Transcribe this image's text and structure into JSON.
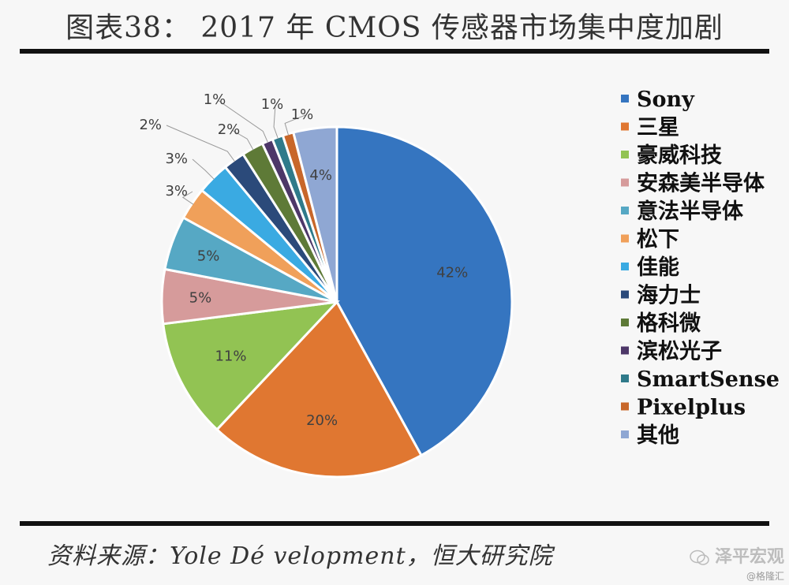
{
  "title": "图表38： 2017 年 CMOS 传感器市场集中度加剧",
  "source": "资料来源：Yole Dé velopment，恒大研究院",
  "watermark": {
    "name": "泽平宏观",
    "sub": "@格隆汇"
  },
  "chart_data": {
    "type": "pie",
    "title": "",
    "categories": [
      "Sony",
      "三星",
      "豪威科技",
      "安森美半导体",
      "意法半导体",
      "松下",
      "佳能",
      "海力士",
      "格科微",
      "滨松光子",
      "SmartSense",
      "Pixelplus",
      "其他"
    ],
    "values": [
      42,
      20,
      11,
      5,
      5,
      3,
      3,
      2,
      2,
      1,
      1,
      1,
      4
    ],
    "labels": [
      "42%",
      "20%",
      "11%",
      "5%",
      "5%",
      "3%",
      "3%",
      "2%",
      "2%",
      "1%",
      "1%",
      "1%",
      "4%"
    ],
    "colors": [
      "#3575c0",
      "#e07731",
      "#92c353",
      "#d69b9b",
      "#56a8c4",
      "#f0a05a",
      "#3aaae2",
      "#2b4a7a",
      "#5e7a37",
      "#4d3768",
      "#2f7a8a",
      "#c8672a",
      "#8fa7d3"
    ],
    "start_angle_deg": 0,
    "direction": "clockwise",
    "legend": "right"
  }
}
